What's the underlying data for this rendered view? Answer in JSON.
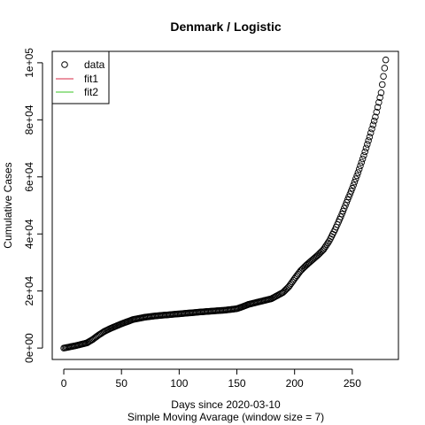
{
  "chart_data": {
    "type": "scatter",
    "title": "Denmark / Logistic",
    "xlabel": "Days since 2020-03-10",
    "subtitle": "Simple Moving Avarage (window size = 7)",
    "ylabel": "Cumulative Cases",
    "xlim": [
      -10,
      290
    ],
    "ylim": [
      -4000,
      104000
    ],
    "x_ticks": [
      0,
      50,
      100,
      150,
      200,
      250
    ],
    "x_tick_labels": [
      "0",
      "50",
      "100",
      "150",
      "200",
      "250"
    ],
    "y_ticks": [
      0,
      20000,
      40000,
      60000,
      80000,
      100000
    ],
    "y_tick_labels": [
      "0e+00",
      "2e+04",
      "4e+04",
      "6e+04",
      "8e+04",
      "1e+05"
    ],
    "grid": false,
    "legend_position": "top-left",
    "legend": [
      {
        "label": "data",
        "symbol": "circle",
        "color": "#000000"
      },
      {
        "label": "fit1",
        "symbol": "line",
        "color": "#DF536B"
      },
      {
        "label": "fit2",
        "symbol": "line",
        "color": "#61D04F"
      }
    ],
    "series": [
      {
        "name": "data",
        "marker": "circle",
        "color": "#000000",
        "anchors": [
          [
            0,
            0
          ],
          [
            10,
            800
          ],
          [
            20,
            1800
          ],
          [
            25,
            3000
          ],
          [
            30,
            4500
          ],
          [
            35,
            5800
          ],
          [
            40,
            6800
          ],
          [
            50,
            8500
          ],
          [
            60,
            10000
          ],
          [
            70,
            10800
          ],
          [
            80,
            11300
          ],
          [
            100,
            12000
          ],
          [
            120,
            12700
          ],
          [
            140,
            13300
          ],
          [
            150,
            13800
          ],
          [
            155,
            14500
          ],
          [
            160,
            15300
          ],
          [
            170,
            16300
          ],
          [
            180,
            17300
          ],
          [
            190,
            19500
          ],
          [
            195,
            21500
          ],
          [
            200,
            24300
          ],
          [
            205,
            27000
          ],
          [
            210,
            29000
          ],
          [
            220,
            32500
          ],
          [
            225,
            34500
          ],
          [
            230,
            37500
          ],
          [
            235,
            41500
          ],
          [
            240,
            46000
          ],
          [
            245,
            51000
          ],
          [
            250,
            56000
          ],
          [
            255,
            61500
          ],
          [
            260,
            67500
          ],
          [
            265,
            74000
          ],
          [
            270,
            81000
          ],
          [
            275,
            89500
          ],
          [
            279,
            101000
          ]
        ]
      },
      {
        "name": "fit1",
        "color": "#DF536B",
        "values": []
      },
      {
        "name": "fit2",
        "color": "#61D04F",
        "values": []
      }
    ]
  }
}
